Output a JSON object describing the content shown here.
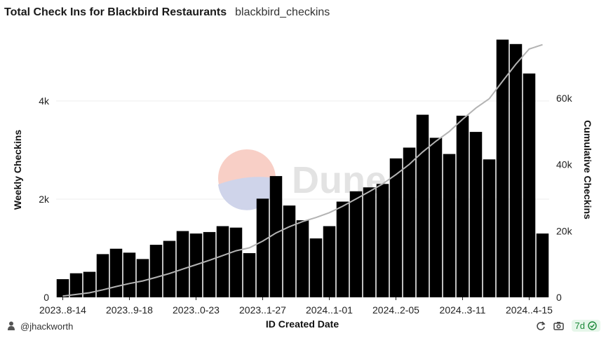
{
  "header": {
    "title": "Total Check Ins for Blackbird Restaurants",
    "query_name": "blackbird_checkins"
  },
  "watermark": {
    "text": "Dune"
  },
  "footer": {
    "user": "@jhackworth",
    "period_badge": "7d",
    "icons": [
      "person-icon",
      "refresh-icon",
      "camera-icon",
      "check-circle-icon"
    ]
  },
  "colors": {
    "bars": "#000000",
    "cumulative_line": "#b3b3b3",
    "grid": "#ececec",
    "watermark_top": "#f8cfc6",
    "watermark_bottom": "#cfd4ea",
    "watermark_text": "#e3e3e3",
    "badge_text": "#1d8a3a"
  },
  "chart_data": {
    "type": "bar",
    "xlabel": "ID Created Date",
    "ylabel": "Weekly Checkins",
    "y2label": "Cumulative Checkins",
    "ylim": [
      0,
      5400
    ],
    "y_ticks": [
      0,
      2000,
      4000
    ],
    "y_tick_labels": [
      "0",
      "2k",
      "4k"
    ],
    "y2lim": [
      0,
      79800
    ],
    "y2_ticks": [
      0,
      20000,
      40000,
      60000
    ],
    "y2_tick_labels": [
      "0",
      "20k",
      "40k",
      "60k"
    ],
    "x_tick_labels": [
      "2023..8-14",
      "2023..9-18",
      "2023..0-23",
      "2023..1-27",
      "2024..1-01",
      "2024..2-05",
      "2024..3-11",
      "2024..4-15"
    ],
    "x_tick_indices": [
      0,
      5,
      10,
      15,
      20,
      25,
      30,
      35
    ],
    "grid": true,
    "series": [
      {
        "type": "bar",
        "axis": "left",
        "values": [
          370,
          490,
          520,
          880,
          990,
          910,
          780,
          1070,
          1150,
          1350,
          1300,
          1330,
          1450,
          1420,
          900,
          2010,
          2470,
          1870,
          1570,
          1200,
          1450,
          1950,
          2160,
          2240,
          2310,
          2830,
          3050,
          3720,
          3250,
          2920,
          3700,
          3370,
          2810,
          5250,
          5160,
          4560,
          1300
        ]
      },
      {
        "type": "line",
        "axis": "right",
        "values": [
          370,
          860,
          1380,
          2260,
          3250,
          4160,
          4940,
          6010,
          7160,
          8510,
          9810,
          11140,
          12590,
          14010,
          14910,
          16920,
          19390,
          21260,
          22830,
          24030,
          25480,
          27430,
          29590,
          31830,
          34140,
          36970,
          40020,
          43740,
          46990,
          49910,
          53610,
          56980,
          59790,
          65040,
          70200,
          74760,
          76060
        ]
      }
    ]
  }
}
